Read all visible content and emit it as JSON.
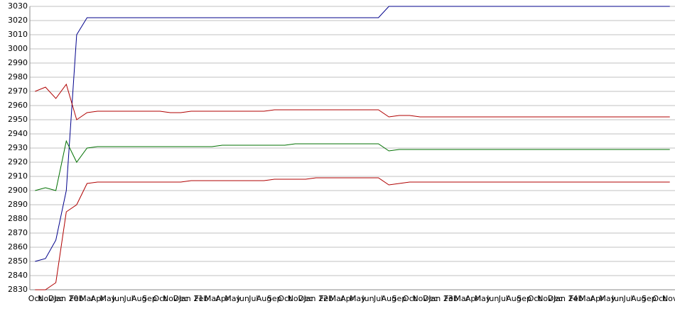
{
  "chart_data": {
    "type": "line",
    "categories": [
      "Oct",
      "Nov",
      "Dec",
      "Jan 20",
      "Feb",
      "Mar",
      "Apr",
      "May",
      "Jun",
      "Jul",
      "Aug",
      "Sep",
      "Oct",
      "Nov",
      "Dec",
      "Jan 21",
      "Feb",
      "Mar",
      "Apr",
      "May",
      "Jun",
      "Jul",
      "Aug",
      "Sep",
      "Oct",
      "Nov",
      "Dec",
      "Jan 22",
      "Feb",
      "Mar",
      "Apr",
      "May",
      "Jun",
      "Jul",
      "Aug",
      "Sep",
      "Oct",
      "Nov",
      "Dec",
      "Jan 23",
      "Feb",
      "Mar",
      "Apr",
      "May",
      "Jun",
      "Jul",
      "Aug",
      "Sep",
      "Oct",
      "Nov",
      "Dec",
      "Jan 24",
      "Feb",
      "Mar",
      "Apr",
      "May",
      "Jun",
      "Jul",
      "Aug",
      "Sep",
      "Oct",
      "Nov"
    ],
    "series": [
      {
        "color": "#00008b",
        "values": [
          2850,
          2852,
          2865,
          2900,
          3010,
          3022,
          3022,
          3022,
          3022,
          3022,
          3022,
          3022,
          3022,
          3022,
          3022,
          3022,
          3022,
          3022,
          3022,
          3022,
          3022,
          3022,
          3022,
          3022,
          3022,
          3022,
          3022,
          3022,
          3022,
          3022,
          3022,
          3022,
          3022,
          3022,
          3030,
          3030,
          3030,
          3030,
          3030,
          3030,
          3030,
          3030,
          3030,
          3030,
          3030,
          3030,
          3030,
          3030,
          3030,
          3030,
          3030,
          3030,
          3030,
          3030,
          3030,
          3030,
          3030,
          3030,
          3030,
          3030,
          3030,
          3030
        ]
      },
      {
        "color": "#b00000",
        "values": [
          2970,
          2973,
          2965,
          2975,
          2950,
          2955,
          2956,
          2956,
          2956,
          2956,
          2956,
          2956,
          2956,
          2955,
          2955,
          2956,
          2956,
          2956,
          2956,
          2956,
          2956,
          2956,
          2956,
          2957,
          2957,
          2957,
          2957,
          2957,
          2957,
          2957,
          2957,
          2957,
          2957,
          2957,
          2952,
          2953,
          2953,
          2952,
          2952,
          2952,
          2952,
          2952,
          2952,
          2952,
          2952,
          2952,
          2952,
          2952,
          2952,
          2952,
          2952,
          2952,
          2952,
          2952,
          2952,
          2952,
          2952,
          2952,
          2952,
          2952,
          2952,
          2952
        ]
      },
      {
        "color": "#007000",
        "values": [
          2900,
          2902,
          2900,
          2935,
          2920,
          2930,
          2931,
          2931,
          2931,
          2931,
          2931,
          2931,
          2931,
          2931,
          2931,
          2931,
          2931,
          2931,
          2932,
          2932,
          2932,
          2932,
          2932,
          2932,
          2932,
          2933,
          2933,
          2933,
          2933,
          2933,
          2933,
          2933,
          2933,
          2933,
          2928,
          2929,
          2929,
          2929,
          2929,
          2929,
          2929,
          2929,
          2929,
          2929,
          2929,
          2929,
          2929,
          2929,
          2929,
          2929,
          2929,
          2929,
          2929,
          2929,
          2929,
          2929,
          2929,
          2929,
          2929,
          2929,
          2929,
          2929
        ]
      },
      {
        "color": "#b00000",
        "values": [
          2830,
          2830,
          2835,
          2885,
          2890,
          2905,
          2906,
          2906,
          2906,
          2906,
          2906,
          2906,
          2906,
          2906,
          2906,
          2907,
          2907,
          2907,
          2907,
          2907,
          2907,
          2907,
          2907,
          2908,
          2908,
          2908,
          2908,
          2909,
          2909,
          2909,
          2909,
          2909,
          2909,
          2909,
          2904,
          2905,
          2906,
          2906,
          2906,
          2906,
          2906,
          2906,
          2906,
          2906,
          2906,
          2906,
          2906,
          2906,
          2906,
          2906,
          2906,
          2906,
          2906,
          2906,
          2906,
          2906,
          2906,
          2906,
          2906,
          2906,
          2906,
          2906
        ]
      }
    ],
    "ylim": [
      2830,
      3030
    ],
    "yticks": [
      2830,
      2840,
      2850,
      2860,
      2870,
      2880,
      2890,
      2900,
      2910,
      2920,
      2930,
      2940,
      2950,
      2960,
      2970,
      2980,
      2990,
      3000,
      3010,
      3020,
      3030
    ],
    "grid": true
  }
}
